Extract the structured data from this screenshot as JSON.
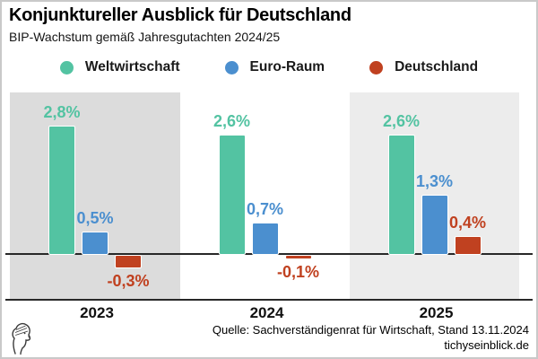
{
  "header": {
    "title": "Konjunktureller Ausblick für Deutschland",
    "subtitle": "BIP-Wachstum gemäß Jahresgutachten 2024/25"
  },
  "chart_data": {
    "type": "bar",
    "categories": [
      "2023",
      "2024",
      "2025"
    ],
    "series": [
      {
        "name": "Weltwirtschaft",
        "color": "#53c3a2",
        "values": [
          2.8,
          2.6,
          2.6
        ],
        "labels": [
          "2,8%",
          "2,6%",
          "2,6%"
        ]
      },
      {
        "name": "Euro-Raum",
        "color": "#4b8fcf",
        "values": [
          0.5,
          0.7,
          1.3
        ],
        "labels": [
          "0,5%",
          "0,7%",
          "1,3%"
        ]
      },
      {
        "name": "Deutschland",
        "color": "#c04120",
        "values": [
          -0.3,
          -0.1,
          0.4
        ],
        "labels": [
          "-0,3%",
          "-0,1%",
          "0,4%"
        ]
      }
    ],
    "unit": "%",
    "ylim": [
      -1.0,
      3.5
    ],
    "grid": false,
    "legend_position": "top",
    "panel_backgrounds": [
      "#dcdcdc",
      "#ffffff",
      "#ececec"
    ],
    "zero_line": true
  },
  "footer": {
    "source": "Quelle: Sachverständigenrat für Wirtschaft, Stand 13.11.2024",
    "site": "tichyseinblick.de",
    "logo": "tichys-einblick-head-logo"
  }
}
